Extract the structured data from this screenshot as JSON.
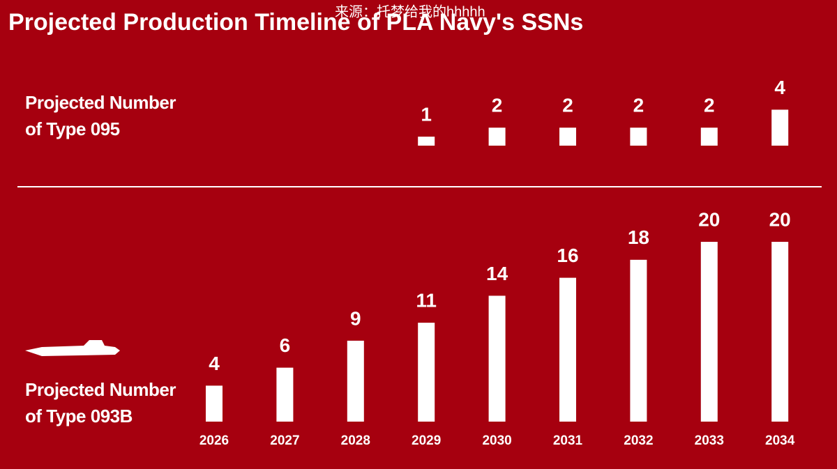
{
  "chart_data": [
    {
      "type": "bar",
      "title": "Projected Production Timeline of PLA Navy's SSNs",
      "watermark": "来源：托梦给我的hhhhh",
      "label": "Projected Number of Type 095",
      "color": "#ffffff",
      "values": [
        null,
        null,
        null,
        1,
        2,
        2,
        2,
        2,
        4
      ]
    },
    {
      "type": "bar",
      "label": "Projected Number of Type 093B",
      "color": "#ffffff",
      "categories": [
        "2026",
        "2027",
        "2028",
        "2029",
        "2030",
        "2031",
        "2032",
        "2033",
        "2034"
      ],
      "values": [
        4,
        6,
        9,
        11,
        14,
        16,
        18,
        20,
        20
      ]
    }
  ]
}
